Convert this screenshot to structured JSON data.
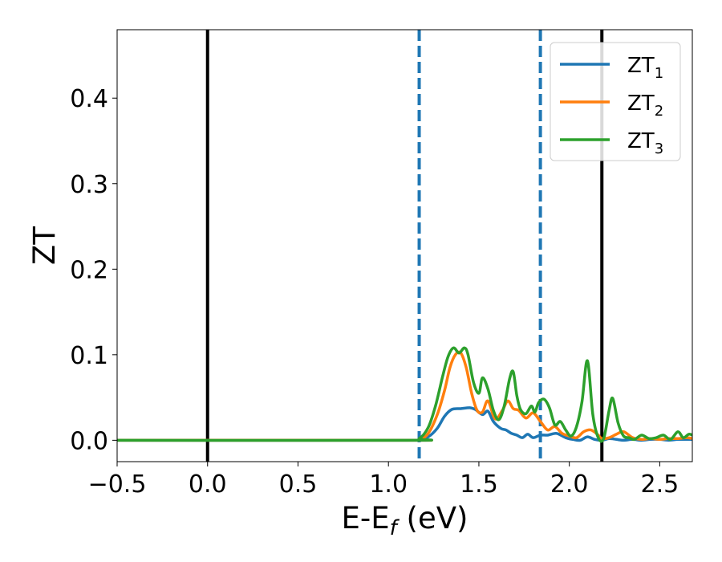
{
  "chart_data": {
    "type": "line",
    "xlabel_main": "E-E",
    "xlabel_sub": "f",
    "xlabel_unit": " (eV)",
    "ylabel": "ZT",
    "xlim": [
      -0.5,
      2.68
    ],
    "ylim": [
      -0.025,
      0.48
    ],
    "xticks": [
      -0.5,
      0.0,
      0.5,
      1.0,
      1.5,
      2.0,
      2.5
    ],
    "xtick_labels": [
      "−0.5",
      "0.0",
      "0.5",
      "1.0",
      "1.5",
      "2.0",
      "2.5"
    ],
    "yticks": [
      0.0,
      0.1,
      0.2,
      0.3,
      0.4
    ],
    "ytick_labels": [
      "0.0",
      "0.1",
      "0.2",
      "0.3",
      "0.4"
    ],
    "grid": false,
    "legend_position": "upper-right",
    "vlines_solid": [
      0.0,
      2.18
    ],
    "vlines_dashed": [
      1.17,
      1.84
    ],
    "vline_solid_color": "#000000",
    "vline_dashed_color": "#1f77b4",
    "series": [
      {
        "name": "ZT",
        "sub": "1",
        "color": "#1f77b4",
        "x": [
          -0.5,
          1.1,
          1.17,
          1.22,
          1.27,
          1.31,
          1.35,
          1.4,
          1.45,
          1.48,
          1.52,
          1.55,
          1.58,
          1.62,
          1.65,
          1.68,
          1.71,
          1.74,
          1.77,
          1.8,
          1.84,
          1.88,
          1.93,
          1.98,
          2.02,
          2.06,
          2.1,
          2.14,
          2.18,
          2.22,
          2.26,
          2.3,
          2.35,
          2.4,
          2.45,
          2.5,
          2.55,
          2.6,
          2.65,
          2.68
        ],
        "y": [
          0.0,
          0.0,
          0.001,
          0.004,
          0.014,
          0.028,
          0.036,
          0.037,
          0.038,
          0.036,
          0.03,
          0.034,
          0.022,
          0.014,
          0.012,
          0.008,
          0.006,
          0.003,
          0.007,
          0.003,
          0.006,
          0.006,
          0.008,
          0.003,
          0.001,
          0.0,
          0.004,
          0.001,
          0.0,
          0.002,
          0.001,
          0.0,
          0.001,
          0.0,
          0.001,
          0.001,
          0.0,
          0.001,
          0.001,
          0.001
        ]
      },
      {
        "name": "ZT",
        "sub": "2",
        "color": "#ff7f0e",
        "x": [
          -0.5,
          1.1,
          1.17,
          1.22,
          1.27,
          1.31,
          1.34,
          1.37,
          1.4,
          1.43,
          1.46,
          1.49,
          1.52,
          1.55,
          1.59,
          1.63,
          1.66,
          1.69,
          1.72,
          1.76,
          1.8,
          1.84,
          1.88,
          1.92,
          1.96,
          2.0,
          2.04,
          2.08,
          2.12,
          2.16,
          2.18,
          2.22,
          2.26,
          2.3,
          2.35,
          2.4,
          2.45,
          2.5,
          2.55,
          2.6,
          2.65,
          2.68
        ],
        "y": [
          0.0,
          0.0,
          0.001,
          0.008,
          0.03,
          0.058,
          0.085,
          0.1,
          0.102,
          0.085,
          0.055,
          0.035,
          0.033,
          0.046,
          0.025,
          0.035,
          0.046,
          0.037,
          0.035,
          0.026,
          0.032,
          0.022,
          0.012,
          0.016,
          0.008,
          0.005,
          0.003,
          0.01,
          0.012,
          0.006,
          0.002,
          0.003,
          0.007,
          0.01,
          0.003,
          0.001,
          0.002,
          0.001,
          0.002,
          0.002,
          0.003,
          0.002
        ]
      },
      {
        "name": "ZT",
        "sub": "3",
        "color": "#2ca02c",
        "x": [
          -0.5,
          1.1,
          1.17,
          1.22,
          1.26,
          1.3,
          1.33,
          1.36,
          1.39,
          1.42,
          1.44,
          1.47,
          1.5,
          1.52,
          1.55,
          1.58,
          1.61,
          1.64,
          1.67,
          1.69,
          1.71,
          1.73,
          1.76,
          1.79,
          1.81,
          1.83,
          1.86,
          1.89,
          1.92,
          1.95,
          1.98,
          2.01,
          2.04,
          2.07,
          2.1,
          2.13,
          2.16,
          2.19,
          2.22,
          2.24,
          2.27,
          2.3,
          2.33,
          2.36,
          2.4,
          2.44,
          2.48,
          2.52,
          2.56,
          2.6,
          2.63,
          2.66,
          2.68
        ],
        "y": [
          0.0,
          0.0,
          0.002,
          0.015,
          0.04,
          0.075,
          0.098,
          0.108,
          0.102,
          0.108,
          0.1,
          0.068,
          0.055,
          0.073,
          0.06,
          0.035,
          0.024,
          0.04,
          0.072,
          0.08,
          0.052,
          0.036,
          0.031,
          0.04,
          0.033,
          0.044,
          0.048,
          0.038,
          0.018,
          0.022,
          0.012,
          0.005,
          0.016,
          0.045,
          0.093,
          0.03,
          0.003,
          0.002,
          0.035,
          0.049,
          0.02,
          0.005,
          0.003,
          0.001,
          0.006,
          0.002,
          0.003,
          0.006,
          0.001,
          0.01,
          0.003,
          0.007,
          0.006
        ]
      }
    ]
  }
}
